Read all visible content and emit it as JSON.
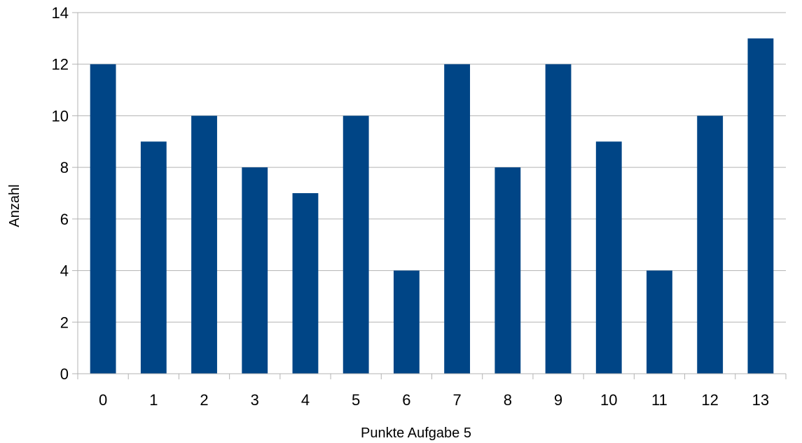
{
  "chart_data": {
    "type": "bar",
    "title": "",
    "xlabel": "Punkte Aufgabe 5",
    "ylabel": "Anzahl",
    "categories": [
      "0",
      "1",
      "2",
      "3",
      "4",
      "5",
      "6",
      "7",
      "8",
      "9",
      "10",
      "11",
      "12",
      "13"
    ],
    "values": [
      12,
      9,
      10,
      8,
      7,
      10,
      4,
      12,
      8,
      12,
      9,
      4,
      10,
      13
    ],
    "ylim": [
      0,
      14
    ],
    "yticks": [
      "0",
      "2",
      "4",
      "6",
      "8",
      "10",
      "12",
      "14"
    ],
    "grid": true,
    "legend": "none",
    "colors": {
      "bar": "#004586",
      "grid": "#b3b3b3",
      "axis": "#b3b3b3"
    }
  }
}
